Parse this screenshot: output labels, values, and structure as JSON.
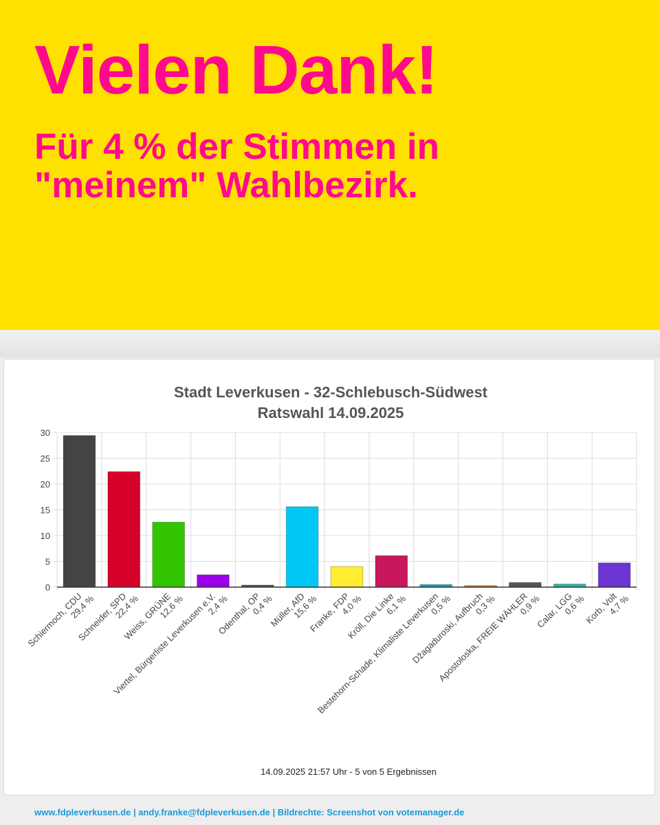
{
  "header": {
    "title": "Vielen Dank!",
    "subtitle": [
      "Für 4 % der Stimmen in",
      "\"meinem\" Wahlbezirk."
    ]
  },
  "chart_data": {
    "type": "bar",
    "title": [
      "Stadt Leverkusen - 32-Schlebusch-Südwest",
      "Ratswahl 14.09.2025"
    ],
    "footnote": "14.09.2025 21:57 Uhr - 5 von 5 Ergebnissen",
    "categories": [
      "Schiermoch, CDU",
      "Schneider, SPD",
      "Weiss, GRÜNE",
      "Viertel, Bürgerliste Leverkusen e.V.",
      "Odenthal, OP",
      "Müller, AfD",
      "Franke, FDP",
      "Kröll, Die Linke",
      "Bestehorn-Schade, Klimaliste Leverkusen",
      "Džagaduroski, Aufbruch",
      "Apostoloska, FREIE WÄHLER",
      "Calar, LGG",
      "Korb, Volt"
    ],
    "values": [
      29.4,
      22.4,
      12.6,
      2.4,
      0.4,
      15.6,
      4.0,
      6.1,
      0.5,
      0.3,
      0.9,
      0.6,
      4.7
    ],
    "value_labels": [
      "29,4 %",
      "22,4 %",
      "12,6 %",
      "2,4 %",
      "0,4 %",
      "15,6 %",
      "4,0 %",
      "6,1 %",
      "0,5 %",
      "0,3 %",
      "0,9 %",
      "0,6 %",
      "4,7 %"
    ],
    "colors": [
      "#444444",
      "#d6002a",
      "#33c400",
      "#9b00e8",
      "#555555",
      "#00c8f5",
      "#ffec33",
      "#c8175b",
      "#1ba1b8",
      "#c8803a",
      "#555555",
      "#2ab8a8",
      "#6a35d0"
    ],
    "ylim": [
      0,
      30
    ],
    "yticks": [
      0,
      5,
      10,
      15,
      20,
      25,
      30
    ],
    "grid": true
  },
  "footer": "www.fdpleverkusen.de | andy.franke@fdpleverkusen.de | Bildrechte: Screenshot von votemanager.de"
}
